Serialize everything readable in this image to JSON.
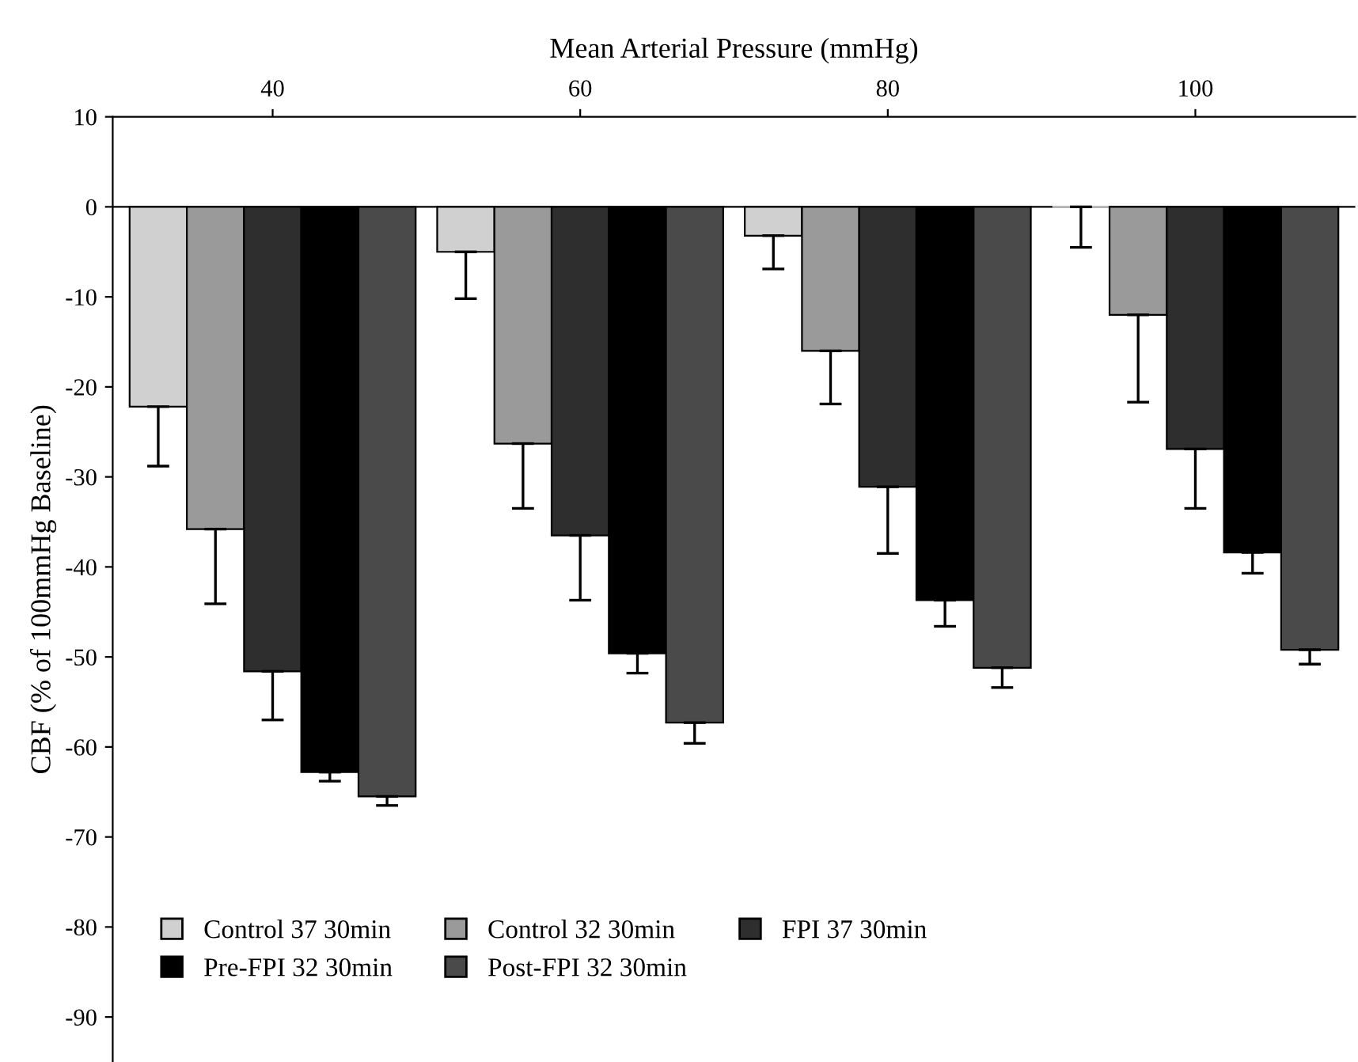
{
  "chart_data": {
    "type": "bar",
    "xlabel": "Mean Arterial Pressure (mmHg)",
    "ylabel": "CBF (% of 100mmHg Baseline)",
    "categories": [
      "40",
      "60",
      "80",
      "100"
    ],
    "ylim": [
      -95,
      10
    ],
    "yticks": [
      10,
      0,
      -10,
      -20,
      -30,
      -40,
      -50,
      -60,
      -70,
      -80,
      -90
    ],
    "grid": false,
    "ref_lines": [
      {
        "axis": "y",
        "value": 0,
        "color": "#000000"
      }
    ],
    "legend": "bottom left",
    "series": [
      {
        "name": "Control 37 30min",
        "color": "#d0d0d0",
        "values": [
          -22.2,
          -5.0,
          -3.2,
          0
        ],
        "errors": [
          [
            -28.8,
            -22.2
          ],
          [
            -10.2,
            -5.0
          ],
          [
            -6.9,
            -3.2
          ],
          [
            -4.5,
            0
          ]
        ]
      },
      {
        "name": "Control 32 30min",
        "color": "#9a9a9a",
        "values": [
          -35.8,
          -26.3,
          -16.0,
          -12.0
        ],
        "errors": [
          [
            -44.1,
            -35.8
          ],
          [
            -33.5,
            -26.3
          ],
          [
            -21.9,
            -16.0
          ],
          [
            -21.7,
            -12.0
          ]
        ]
      },
      {
        "name": "FPI 37 30min",
        "color": "#2e2e2e",
        "values": [
          -51.6,
          -36.5,
          -31.1,
          -26.9
        ],
        "errors": [
          [
            -57.0,
            -51.6
          ],
          [
            -43.7,
            -36.5
          ],
          [
            -38.5,
            -31.1
          ],
          [
            -33.5,
            -26.9
          ]
        ]
      },
      {
        "name": "Pre-FPI 32 30min",
        "color": "#000000",
        "values": [
          -62.8,
          -49.6,
          -43.7,
          -38.4
        ],
        "errors": [
          [
            -63.8,
            -62.8
          ],
          [
            -51.8,
            -49.6
          ],
          [
            -46.6,
            -43.7
          ],
          [
            -40.7,
            -38.4
          ]
        ]
      },
      {
        "name": "Post-FPI 32 30min",
        "color": "#4a4a4a",
        "values": [
          -65.5,
          -57.3,
          -51.2,
          -49.2
        ],
        "errors": [
          [
            -66.5,
            -65.5
          ],
          [
            -59.6,
            -57.3
          ],
          [
            -53.4,
            -51.2
          ],
          [
            -50.8,
            -49.2
          ]
        ]
      }
    ]
  }
}
